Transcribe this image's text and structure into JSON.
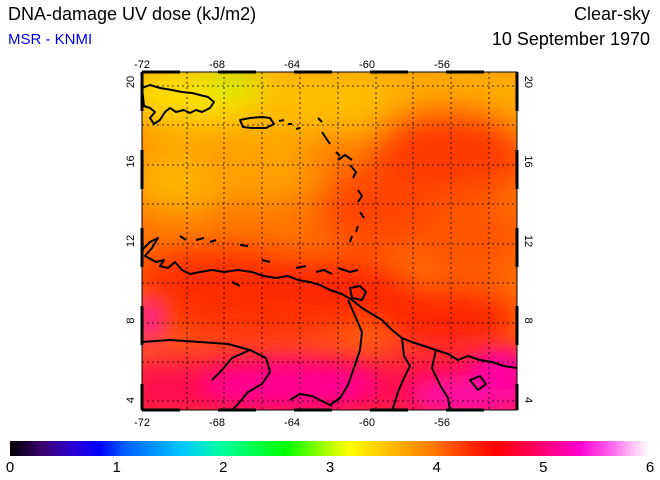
{
  "header": {
    "title": "DNA-damage UV dose (kJ/m2)",
    "credit": "MSR - KNMI",
    "mode": "Clear-sky",
    "date": "10 September 1970"
  },
  "map": {
    "lon_ticks": [
      "-72",
      "-68",
      "-64",
      "-60",
      "-56"
    ],
    "lat_ticks": [
      "20",
      "16",
      "12",
      "8",
      "4"
    ],
    "lon_range": [
      -72,
      -52
    ],
    "lat_range": [
      3.5,
      20.5
    ],
    "field_colors": {
      "north_yellow": "#ffd200",
      "orange": "#ff9a00",
      "red": "#ff3a00",
      "magenta": "#ff0090"
    }
  },
  "colorbar": {
    "labels": [
      "0",
      "1",
      "2",
      "3",
      "4",
      "5",
      "6"
    ],
    "min": 0,
    "max": 6
  }
}
